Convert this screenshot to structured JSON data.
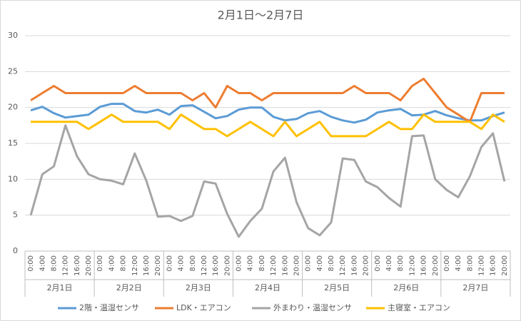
{
  "chart_data": {
    "type": "line",
    "title": "2月1日～2月7日",
    "categories": [
      "0:00",
      "4:00",
      "8:00",
      "12:00",
      "16:00",
      "20:00",
      "0:00",
      "4:00",
      "8:00",
      "12:00",
      "16:00",
      "20:00",
      "0:00",
      "4:00",
      "8:00",
      "12:00",
      "16:00",
      "20:00",
      "0:00",
      "4:00",
      "8:00",
      "12:00",
      "16:00",
      "20:00",
      "0:00",
      "4:00",
      "8:00",
      "12:00",
      "16:00",
      "20:00",
      "0:00",
      "4:00",
      "8:00",
      "12:00",
      "16:00",
      "20:00",
      "0:00",
      "4:00",
      "8:00",
      "12:00",
      "16:00",
      "20:00"
    ],
    "groups": [
      "2月1日",
      "2月2日",
      "2月3日",
      "2月4日",
      "2月5日",
      "2月6日",
      "2月7日"
    ],
    "series": [
      {
        "name": "2階・温湿センサ",
        "color": "#5b9bd5",
        "values": [
          19.6,
          20.1,
          19.2,
          18.6,
          18.8,
          19.0,
          20.1,
          20.5,
          20.5,
          19.5,
          19.3,
          19.7,
          19.0,
          20.2,
          20.3,
          19.4,
          18.5,
          18.8,
          19.7,
          20.0,
          20.0,
          18.7,
          18.2,
          18.4,
          19.2,
          19.5,
          18.7,
          18.2,
          17.9,
          18.3,
          19.3,
          19.6,
          19.8,
          18.9,
          19.0,
          19.5,
          18.9,
          18.5,
          18.2,
          18.2,
          18.8,
          19.3
        ]
      },
      {
        "name": "LDK・エアコン",
        "color": "#ed7d31",
        "values": [
          21,
          22,
          23,
          22,
          22,
          22,
          22,
          22,
          22,
          23,
          22,
          22,
          22,
          22,
          21,
          22,
          20,
          23,
          22,
          22,
          21,
          22,
          22,
          22,
          22,
          22,
          22,
          22,
          23,
          22,
          22,
          22,
          21,
          23,
          24,
          22,
          20,
          19,
          18,
          22,
          22,
          22
        ]
      },
      {
        "name": "外まわり・温湿センサ",
        "color": "#a5a5a5",
        "values": [
          5.0,
          10.7,
          11.8,
          17.5,
          13.2,
          10.7,
          10.0,
          9.8,
          9.3,
          13.6,
          9.8,
          4.8,
          4.9,
          4.2,
          4.9,
          9.7,
          9.4,
          5.2,
          2.0,
          4.2,
          5.9,
          11.1,
          13.0,
          6.8,
          3.2,
          2.2,
          4.0,
          12.9,
          12.7,
          9.7,
          8.9,
          7.4,
          6.2,
          16.0,
          16.1,
          10.0,
          8.5,
          7.5,
          10.4,
          14.5,
          16.4,
          9.7
        ]
      },
      {
        "name": "主寝室・エアコン",
        "color": "#ffc000",
        "values": [
          18,
          18,
          18,
          18,
          18,
          17,
          18,
          19,
          18,
          18,
          18,
          18,
          17,
          19,
          18,
          17,
          17,
          16,
          17,
          18,
          17,
          16,
          18,
          16,
          17,
          18,
          16,
          16,
          16,
          16,
          17,
          18,
          17,
          17,
          19,
          18,
          18,
          18,
          18,
          17,
          19,
          18
        ]
      }
    ],
    "ylim": [
      0,
      30
    ],
    "yticks": [
      0,
      5,
      10,
      15,
      20,
      25,
      30
    ],
    "grid": true,
    "legend": "bottom"
  }
}
